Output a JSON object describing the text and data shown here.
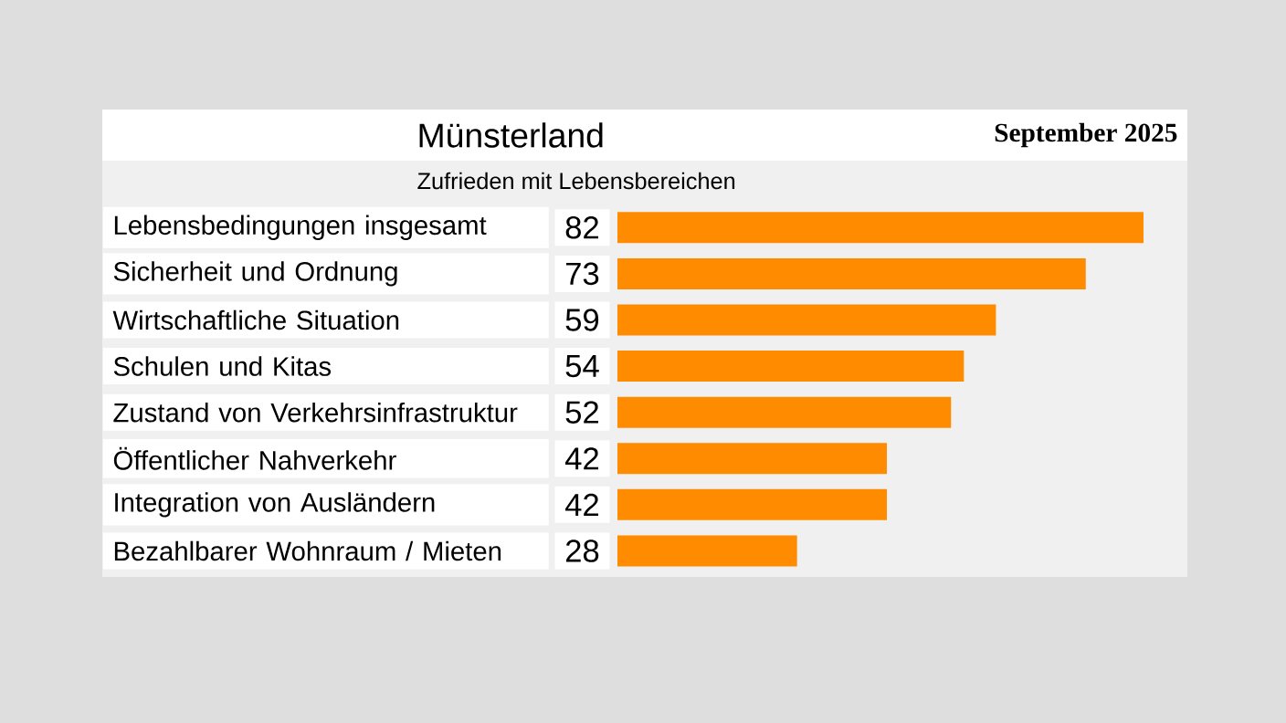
{
  "chart_data": {
    "type": "bar",
    "orientation": "horizontal",
    "title": "Münsterland",
    "subtitle": "Zufrieden mit Lebensbereichen",
    "annotations": [
      "September 2025"
    ],
    "categories": [
      "Lebensbedingungen insgesamt",
      "Sicherheit und Ordnung",
      "Wirtschaftliche Situation",
      "Schulen und Kitas",
      "Zustand von Verkehrsinfrastruktur",
      "Öffentlicher Nahverkehr",
      "Integration von Ausländern",
      "Bezahlbarer Wohnraum / Mieten"
    ],
    "values": [
      82,
      73,
      59,
      54,
      52,
      42,
      42,
      28
    ],
    "color": "#ff8c00",
    "data_labels": true
  }
}
